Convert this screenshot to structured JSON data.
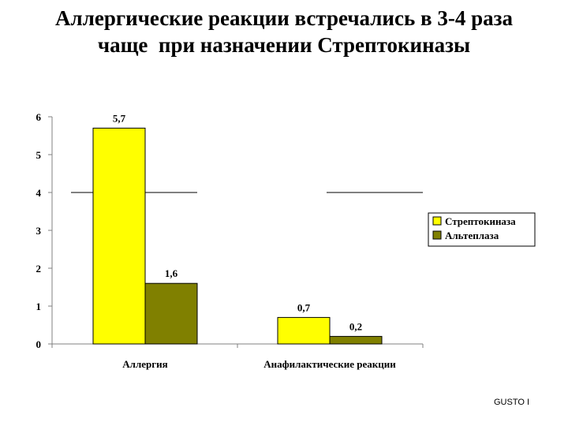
{
  "slide": {
    "title_lines": [
      "Аллергические реакции встречались в 3-4 раза",
      "чаще  при назначении Стрептокиназы"
    ],
    "footer": "GUSTO I"
  },
  "chart_data": {
    "type": "bar",
    "title": "",
    "xlabel": "",
    "ylabel": "",
    "ylim": [
      0,
      6
    ],
    "yticks": [
      "0",
      "1",
      "2",
      "3",
      "4",
      "5",
      "6"
    ],
    "categories": [
      "Аллергия",
      "Анафилактические реакции"
    ],
    "series": [
      {
        "name": "Стрептокиназа",
        "color": "#ffff00",
        "values": [
          5.7,
          0.7
        ],
        "value_labels": [
          "5,7",
          "0,7"
        ]
      },
      {
        "name": "Альтеплаза",
        "color": "#808000",
        "values": [
          1.6,
          0.2
        ],
        "value_labels": [
          "1,6",
          "0,2"
        ]
      }
    ],
    "reference_line": 4,
    "grid": false,
    "legend_position": "right"
  }
}
